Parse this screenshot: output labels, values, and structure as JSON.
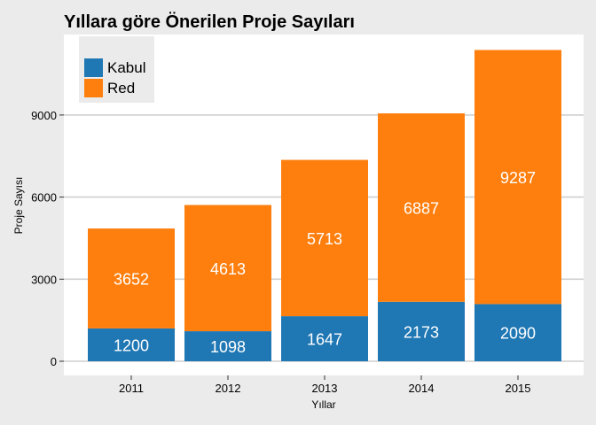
{
  "chart_data": {
    "type": "bar",
    "stacked": true,
    "title": "Yıllara göre Önerilen Proje Sayıları",
    "xlabel": "Yıllar",
    "ylabel": "Proje Sayısı",
    "categories": [
      "2011",
      "2012",
      "2013",
      "2014",
      "2015"
    ],
    "series": [
      {
        "name": "Kabul",
        "color": "#1f77b4",
        "values": [
          1200,
          1098,
          1647,
          2173,
          2090
        ]
      },
      {
        "name": "Red",
        "color": "#ff7f0e",
        "values": [
          3652,
          4613,
          5713,
          6887,
          9287
        ]
      }
    ],
    "yticks": [
      0,
      3000,
      6000,
      9000
    ],
    "ytick_labels": [
      "0",
      "3000",
      "6000",
      "9000"
    ],
    "ylim": [
      0,
      11700
    ],
    "grid": true,
    "legend_position": "top-left"
  }
}
